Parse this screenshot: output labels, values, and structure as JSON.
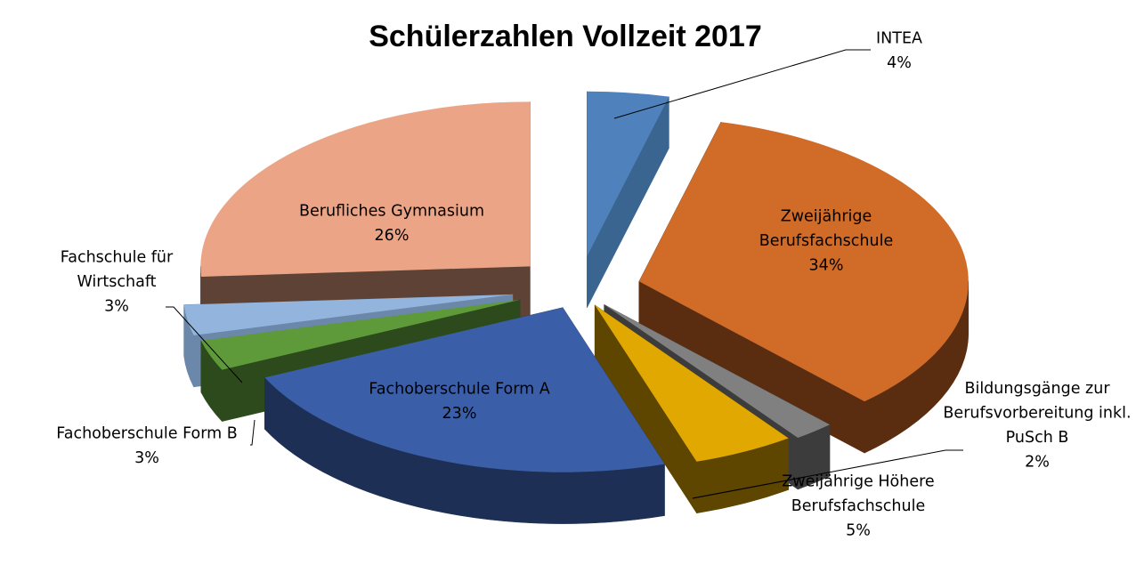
{
  "chart_data": {
    "type": "pie",
    "title": "Schülerzahlen Vollzeit 2017",
    "slices": [
      {
        "label": [
          "INTEA"
        ],
        "percent_label": "4%",
        "value": 4,
        "color": "#4F81BD",
        "side_color": "#3A6590"
      },
      {
        "label": [
          "Zweijährige",
          "Berufsfachschule"
        ],
        "percent_label": "34%",
        "value": 34,
        "color": "#D06B28",
        "side_color": "#5A2C10"
      },
      {
        "label": [
          "Bildungsgänge zur",
          "Berufsvorbereitung inkl.",
          "PuSch B"
        ],
        "percent_label": "2%",
        "value": 2,
        "color": "#808080",
        "side_color": "#3C3C3C"
      },
      {
        "label": [
          "Zweijährige Höhere",
          "Berufsfachschule"
        ],
        "percent_label": "5%",
        "value": 5,
        "color": "#E0A800",
        "side_color": "#5E4600"
      },
      {
        "label": [
          "Fachoberschule Form A"
        ],
        "percent_label": "23%",
        "value": 23,
        "color": "#3A5FA8",
        "side_color": "#1E2F55"
      },
      {
        "label": [
          "Fachoberschule Form B"
        ],
        "percent_label": "3%",
        "value": 3,
        "color": "#5E9A3A",
        "side_color": "#2C4A1C"
      },
      {
        "label": [
          "Fachschule für",
          "Wirtschaft"
        ],
        "percent_label": "3%",
        "value": 3,
        "color": "#93B4DD",
        "side_color": "#6B87AA"
      },
      {
        "label": [
          "Berufliches Gymnasium"
        ],
        "percent_label": "26%",
        "value": 26,
        "color": "#EBA586",
        "side_color": "#5E4236"
      }
    ]
  }
}
